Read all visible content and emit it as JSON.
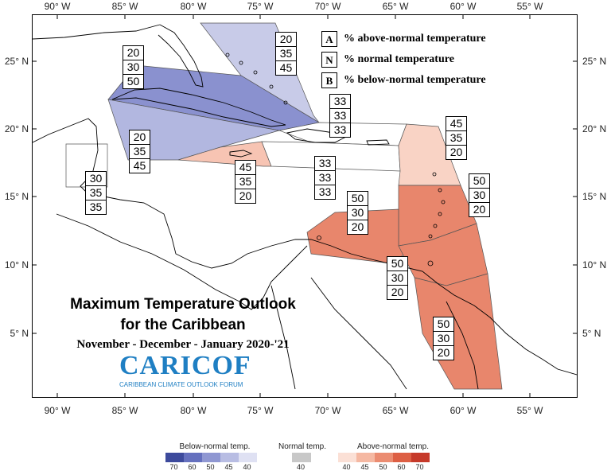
{
  "title": {
    "line1": "Maximum Temperature Outlook",
    "line2": "for the Caribbean",
    "line3": "November - December - January 2020-'21"
  },
  "logo": {
    "name": "CARICOF",
    "subtitle": "CARIBBEAN CLIMATE OUTLOOK FORUM"
  },
  "key": [
    {
      "letter": "A",
      "text": "% above-normal temperature"
    },
    {
      "letter": "N",
      "text": "% normal temperature"
    },
    {
      "letter": "B",
      "text": "% below-normal temperature"
    }
  ],
  "axes": {
    "lon_labels": [
      "90° W",
      "85° W",
      "80° W",
      "75° W",
      "70° W",
      "65° W",
      "60° W",
      "55° W"
    ],
    "lat_labels": [
      "25° N",
      "20° N",
      "15° N",
      "10° N",
      "5° N"
    ]
  },
  "regions": [
    {
      "name": "bahamas",
      "above": 20,
      "normal": 35,
      "below": 45,
      "color": "#c8cbe8"
    },
    {
      "name": "cuba",
      "above": 20,
      "normal": 30,
      "below": 50,
      "color": "#8a91cf"
    },
    {
      "name": "cayman",
      "above": 20,
      "normal": 35,
      "below": 45,
      "color": "#b2b7e0"
    },
    {
      "name": "belize",
      "above": 30,
      "normal": 35,
      "below": 35,
      "color": "#ffffff"
    },
    {
      "name": "jamaica",
      "above": 45,
      "normal": 35,
      "below": 20,
      "color": "#f7c4b3"
    },
    {
      "name": "hispaniola-north",
      "above": 33,
      "normal": 33,
      "below": 33,
      "color": "#ffffff"
    },
    {
      "name": "hispaniola-south",
      "above": 33,
      "normal": 33,
      "below": 33,
      "color": "#ffffff"
    },
    {
      "name": "leeward-islands",
      "above": 45,
      "normal": 35,
      "below": 20,
      "color": "#f9d3c5"
    },
    {
      "name": "windward-islands",
      "above": 50,
      "normal": 30,
      "below": 20,
      "color": "#e8866c"
    },
    {
      "name": "abc-islands",
      "above": 50,
      "normal": 30,
      "below": 20,
      "color": "#e8866c"
    },
    {
      "name": "trinidad",
      "above": 50,
      "normal": 30,
      "below": 20,
      "color": "#e8866c"
    },
    {
      "name": "guianas",
      "above": 50,
      "normal": 30,
      "below": 20,
      "color": "#e8866c"
    }
  ],
  "colorbar": {
    "below_title": "Below-normal temp.",
    "normal_title": "Normal temp.",
    "above_title": "Above-normal temp.",
    "below_ticks": [
      "70",
      "60",
      "50",
      "45",
      "40"
    ],
    "normal_ticks": [
      "40"
    ],
    "above_ticks": [
      "40",
      "45",
      "50",
      "60",
      "70"
    ],
    "below_colors": [
      "#3d4a9c",
      "#6570be",
      "#8f97d2",
      "#b8bde3",
      "#dfe1f3"
    ],
    "normal_colors": [
      "#c8c8c8"
    ],
    "above_colors": [
      "#fbe0d6",
      "#f5b8a2",
      "#eb8c71",
      "#dd5f44",
      "#c63a2a"
    ]
  }
}
